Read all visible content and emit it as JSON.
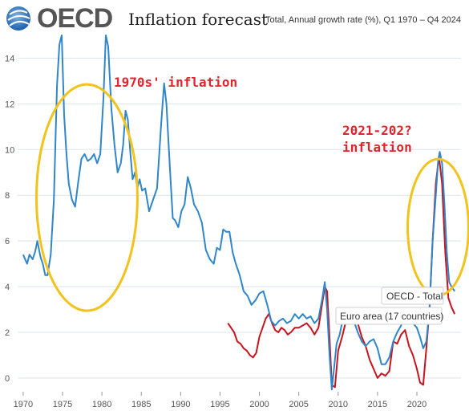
{
  "header": {
    "logo_text": "OECD",
    "title": "Inflation forecast",
    "subtitle": "Total, Annual growth rate (%), Q1 1970 – Q4 2024"
  },
  "annotations": {
    "inflation_1970s": "1970s' inflation",
    "inflation_2021_line1": "2021-202?",
    "inflation_2021_line2": "inflation"
  },
  "colors": {
    "oecd_total": "#2f86c9",
    "euro_area": "#c8141e",
    "circle": "#f2c31a",
    "annotation": "#e0262c",
    "grid": "#dde4ee"
  },
  "chart_data": {
    "type": "line",
    "title": "Inflation forecast",
    "subtitle": "Total, Annual growth rate (%), Q1 1970 – Q4 2024",
    "xlim": [
      1969.3,
      2025.6
    ],
    "ylim": [
      -0.6,
      15.0
    ],
    "x_ticks": [
      1970,
      1975,
      1980,
      1985,
      1990,
      1995,
      2000,
      2005,
      2010,
      2015,
      2020
    ],
    "y_ticks": [
      0,
      2,
      4,
      6,
      8,
      10,
      12,
      14
    ],
    "grid": "horizontal",
    "legend": "labels at line ends",
    "series": [
      {
        "name": "OECD - Total",
        "x": [
          1970,
          1970.5,
          1970.8,
          1971.2,
          1971.5,
          1971.8,
          1972.2,
          1972.5,
          1972.8,
          1973.1,
          1973.5,
          1973.9,
          1974.3,
          1974.6,
          1974.9,
          1975.2,
          1975.5,
          1975.8,
          1976.2,
          1976.6,
          1977,
          1977.4,
          1977.8,
          1978.2,
          1978.6,
          1979,
          1979.4,
          1979.8,
          1980.2,
          1980.5,
          1980.8,
          1981.2,
          1981.6,
          1982,
          1982.4,
          1982.7,
          1983,
          1983.3,
          1983.6,
          1983.9,
          1984.2,
          1984.5,
          1984.8,
          1985.1,
          1985.5,
          1986,
          1986.5,
          1987,
          1987.5,
          1987.9,
          1988.2,
          1988.6,
          1989,
          1989.3,
          1989.7,
          1990.1,
          1990.5,
          1990.9,
          1991.3,
          1991.7,
          1992.2,
          1992.7,
          1993.2,
          1993.7,
          1994.2,
          1994.6,
          1995,
          1995.4,
          1995.8,
          1996.2,
          1996.6,
          1997,
          1997.5,
          1998,
          1998.5,
          1999,
          1999.5,
          2000,
          2000.5,
          2001,
          2001.5,
          2002,
          2002.5,
          2003,
          2003.5,
          2004,
          2004.5,
          2005,
          2005.5,
          2006,
          2006.5,
          2007,
          2007.5,
          2008,
          2008.3,
          2008.6,
          2008.9,
          2009.2,
          2009.5,
          2009.8,
          2010.2,
          2010.6,
          2011,
          2011.5,
          2012,
          2012.5,
          2013,
          2013.5,
          2014,
          2014.5,
          2015,
          2015.5,
          2016,
          2016.5,
          2017,
          2017.5,
          2018,
          2018.5,
          2019,
          2019.5,
          2020,
          2020.4,
          2020.8,
          2021.2,
          2021.6,
          2022,
          2022.4,
          2022.7,
          2022.9,
          2023.2,
          2023.5,
          2023.8,
          2024.1,
          2024.4,
          2024.8
        ],
        "values": [
          5.4,
          5.0,
          5.4,
          5.2,
          5.5,
          6.0,
          5.3,
          5.0,
          4.5,
          4.5,
          5.4,
          7.8,
          12.8,
          14.6,
          15.0,
          11.5,
          9.8,
          8.5,
          7.8,
          7.5,
          8.6,
          9.6,
          9.8,
          9.5,
          9.6,
          9.8,
          9.4,
          9.8,
          12.3,
          15.0,
          14.5,
          11.8,
          10.2,
          9.0,
          9.4,
          10.2,
          11.7,
          11.3,
          9.9,
          8.7,
          9.0,
          8.3,
          8.7,
          8.2,
          8.3,
          7.3,
          7.8,
          8.3,
          11.0,
          12.9,
          12.0,
          9.4,
          7.0,
          6.9,
          6.6,
          7.3,
          7.6,
          8.8,
          8.3,
          7.6,
          7.3,
          6.8,
          5.6,
          5.2,
          5.0,
          5.7,
          5.6,
          6.5,
          6.4,
          6.4,
          5.5,
          5.0,
          4.5,
          3.8,
          3.6,
          3.2,
          3.4,
          3.7,
          3.8,
          3.2,
          2.5,
          2.3,
          2.5,
          2.6,
          2.4,
          2.5,
          2.8,
          2.6,
          2.8,
          2.6,
          2.7,
          2.4,
          2.6,
          3.5,
          4.2,
          3.0,
          1.0,
          -0.5,
          0.5,
          1.5,
          1.9,
          2.6,
          2.9,
          2.8,
          2.5,
          2.0,
          1.6,
          1.4,
          1.6,
          1.7,
          1.3,
          0.6,
          0.6,
          0.9,
          1.6,
          2.0,
          2.3,
          2.9,
          2.6,
          2.4,
          2.2,
          1.8,
          1.3,
          1.6,
          3.0,
          6.0,
          8.0,
          9.5,
          9.9,
          9.4,
          7.6,
          5.5,
          4.2,
          4.0,
          3.8
        ]
      },
      {
        "name": "Euro area (17 countries)",
        "x": [
          1996,
          1996.4,
          1996.8,
          1997.2,
          1997.6,
          1998,
          1998.4,
          1998.8,
          1999.2,
          1999.6,
          2000,
          2000.4,
          2000.8,
          2001.2,
          2001.6,
          2002,
          2002.4,
          2002.8,
          2003.2,
          2003.6,
          2004,
          2004.5,
          2005,
          2005.5,
          2006,
          2006.5,
          2007,
          2007.5,
          2008,
          2008.3,
          2008.6,
          2008.9,
          2009.2,
          2009.6,
          2010,
          2010.5,
          2011,
          2011.5,
          2012,
          2012.5,
          2013,
          2013.5,
          2014,
          2014.5,
          2015,
          2015.5,
          2016,
          2016.5,
          2017,
          2017.5,
          2018,
          2018.5,
          2019,
          2019.5,
          2020,
          2020.4,
          2020.8,
          2021.2,
          2021.6,
          2022,
          2022.4,
          2022.8,
          2023.2,
          2023.6,
          2024,
          2024.4,
          2024.8
        ],
        "values": [
          2.4,
          2.2,
          2.0,
          1.6,
          1.5,
          1.3,
          1.2,
          1.0,
          0.9,
          1.1,
          1.8,
          2.2,
          2.6,
          2.8,
          2.4,
          2.1,
          2.0,
          2.2,
          2.1,
          1.9,
          2.0,
          2.2,
          2.2,
          2.3,
          2.4,
          2.2,
          1.9,
          2.2,
          3.3,
          4.0,
          3.8,
          1.8,
          -0.3,
          -0.4,
          1.2,
          1.8,
          2.5,
          2.8,
          2.6,
          2.4,
          1.8,
          1.4,
          0.8,
          0.4,
          0.0,
          0.2,
          0.1,
          0.3,
          1.6,
          1.5,
          1.9,
          2.1,
          1.4,
          1.0,
          0.4,
          -0.2,
          -0.3,
          1.3,
          3.0,
          6.0,
          8.5,
          9.7,
          8.5,
          5.5,
          3.5,
          3.1,
          2.8
        ]
      }
    ],
    "end_labels": [
      "OECD - Total",
      "Euro area (17 countries)"
    ]
  }
}
